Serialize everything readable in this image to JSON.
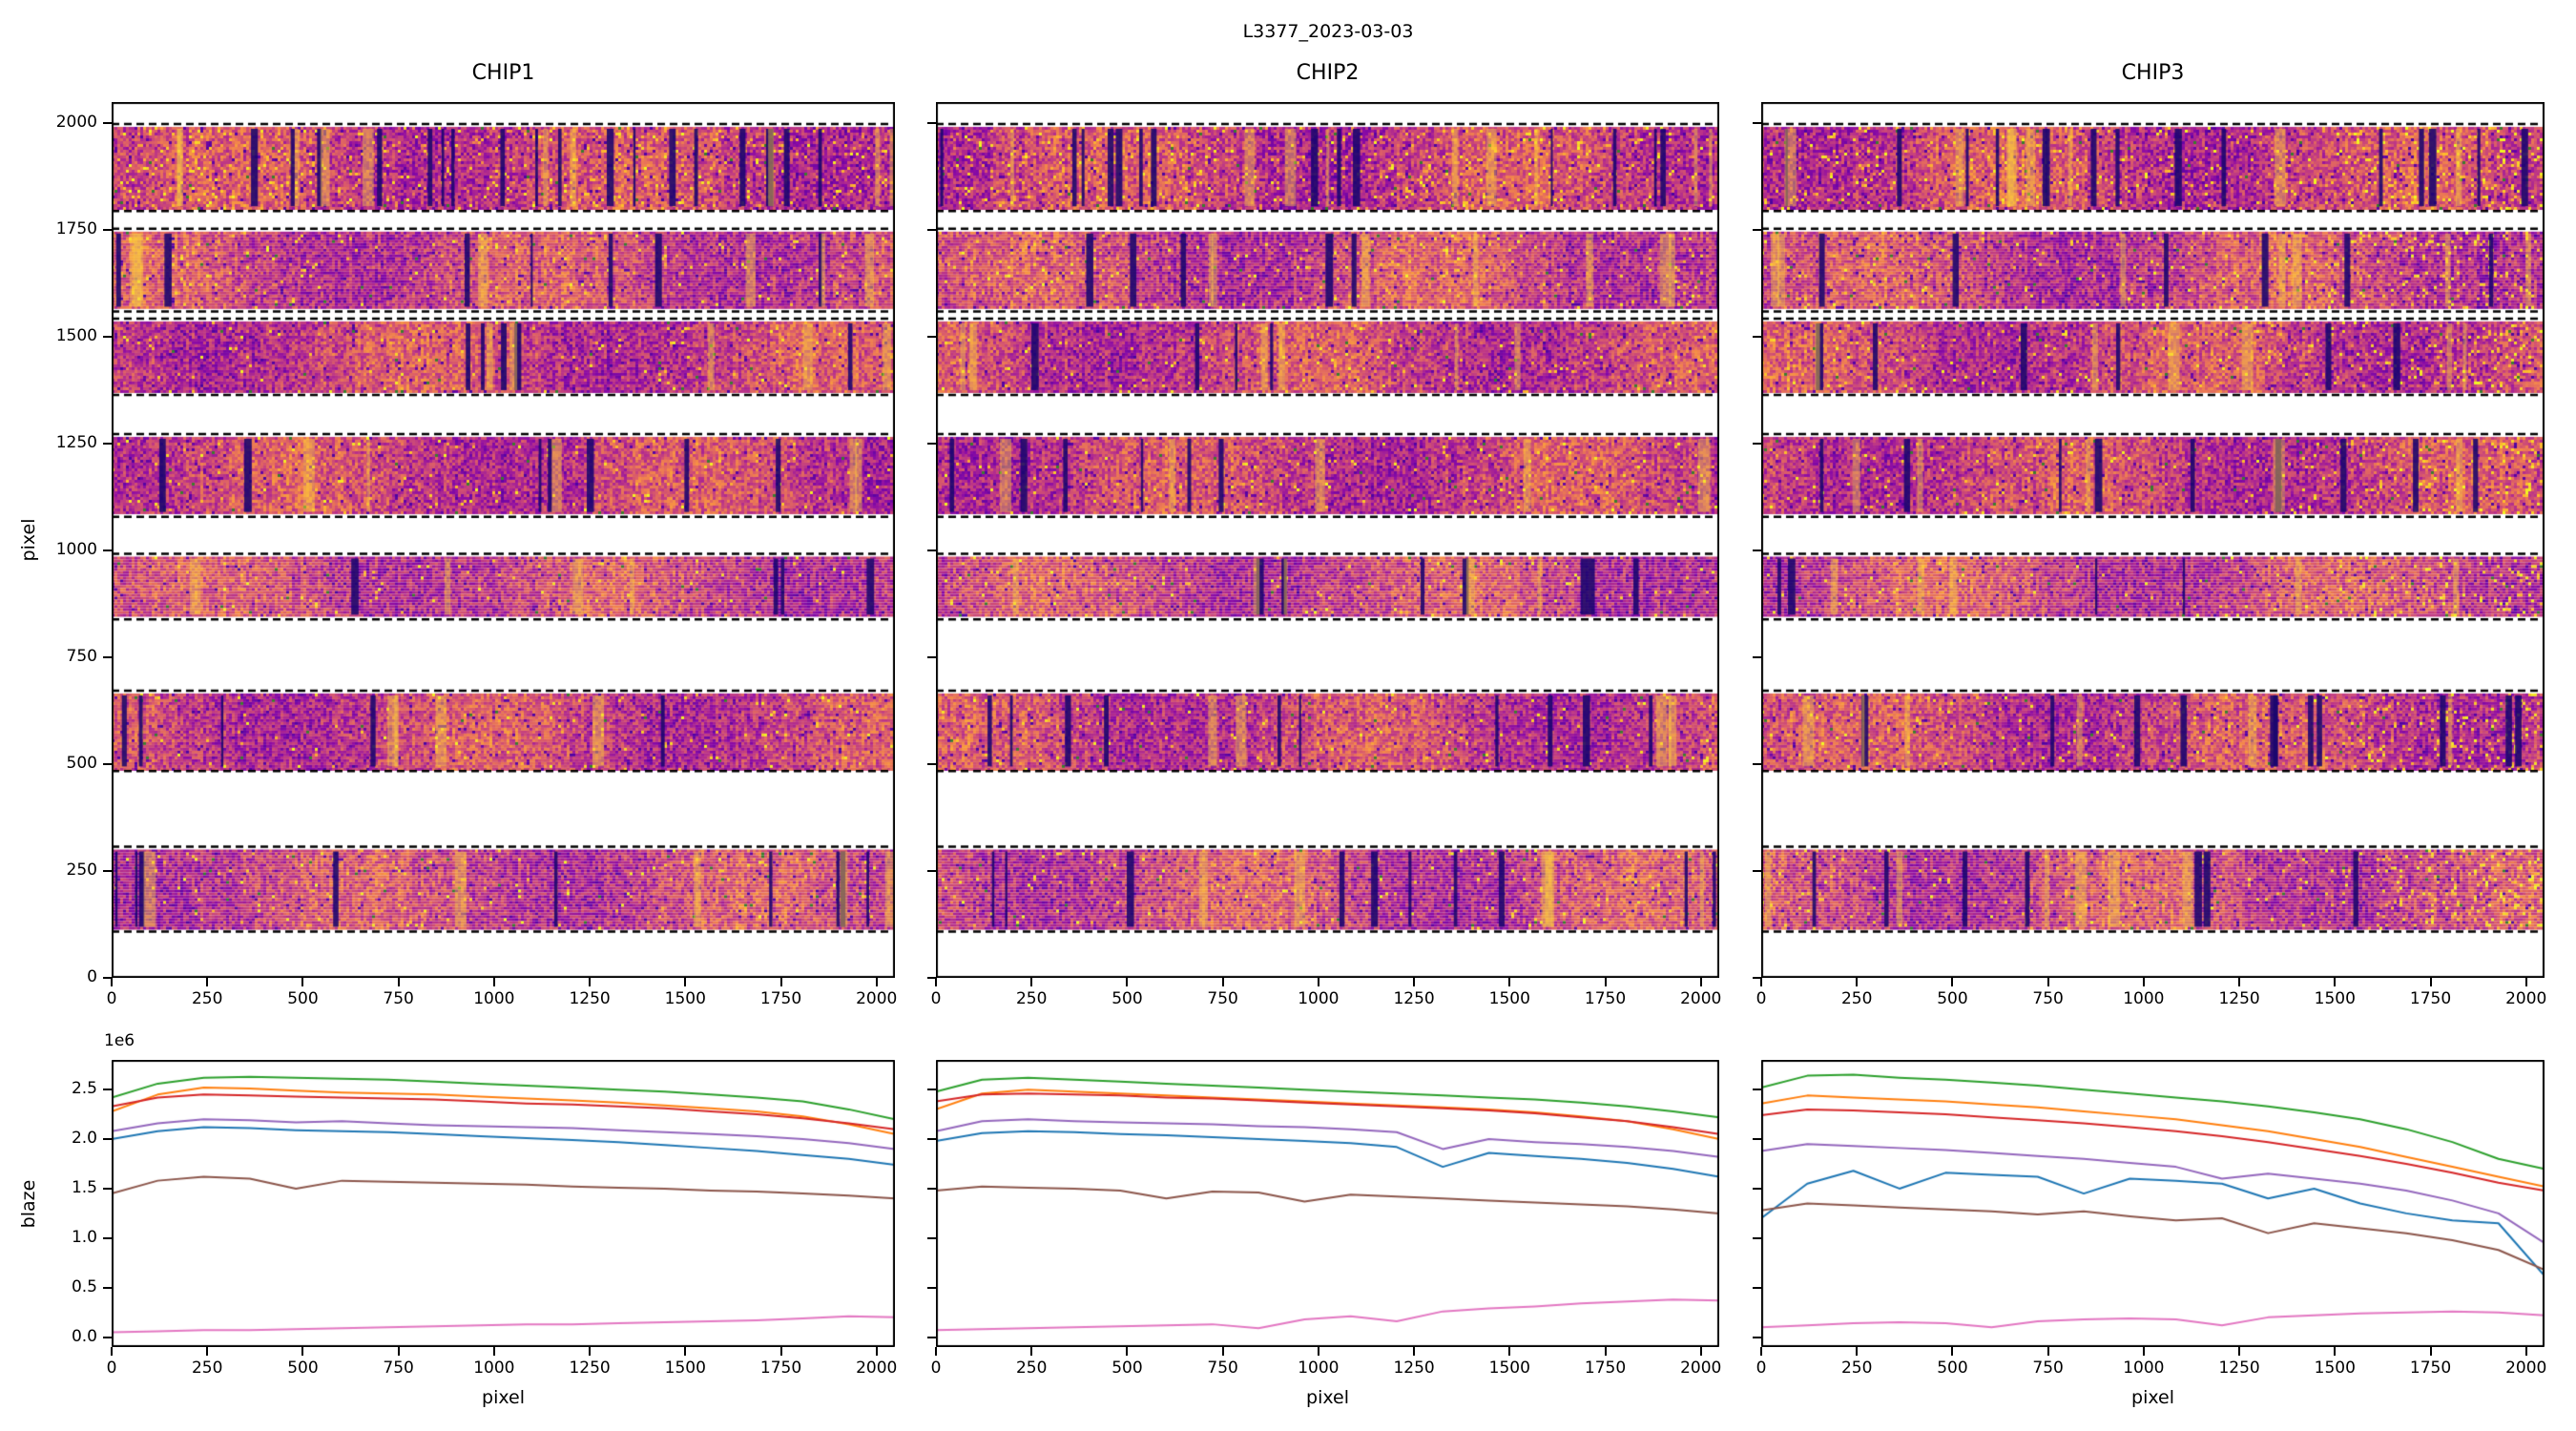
{
  "figure": {
    "title": "L3377_2023-03-03",
    "background": "#ffffff"
  },
  "axes": {
    "top": {
      "ylabel": "pixel",
      "xlim": [
        0,
        2048
      ],
      "ylim": [
        0,
        2048
      ],
      "xticks": {
        "values": [
          0,
          250,
          500,
          750,
          1000,
          1250,
          1500,
          1750,
          2000
        ],
        "labels": [
          "0",
          "250",
          "500",
          "750",
          "1000",
          "1250",
          "1500",
          "1750",
          "2000"
        ]
      },
      "yticks": {
        "values": [
          0,
          250,
          500,
          750,
          1000,
          1250,
          1500,
          1750,
          2000
        ],
        "labels": [
          "0",
          "250",
          "500",
          "750",
          "1000",
          "1250",
          "1500",
          "1750",
          "2000"
        ]
      }
    },
    "bottom": {
      "ylabel": "blaze",
      "xlabel": "pixel",
      "offset_text": "1e6",
      "xlim": [
        0,
        2048
      ],
      "ylim": [
        -0.1,
        2.8
      ],
      "xticks": {
        "values": [
          0,
          250,
          500,
          750,
          1000,
          1250,
          1500,
          1750,
          2000
        ],
        "labels": [
          "0",
          "250",
          "500",
          "750",
          "1000",
          "1250",
          "1500",
          "1750",
          "2000"
        ]
      },
      "yticks": {
        "values": [
          0,
          0.5,
          1.0,
          1.5,
          2.0,
          2.5
        ],
        "labels": [
          "0.0",
          "0.5",
          "1.0",
          "1.5",
          "2.0",
          "2.5"
        ]
      }
    }
  },
  "chart_data": [
    {
      "type": "heatmap",
      "panel": "top",
      "title": "CHIP1",
      "xlim": [
        0,
        2048
      ],
      "ylim": [
        0,
        2048
      ],
      "colormap": "plasma",
      "orders": [
        {
          "y0": 1800,
          "y1": 1990,
          "intensity": 1.0,
          "hot_edge": false
        },
        {
          "y0": 1565,
          "y1": 1745,
          "intensity": 0.65,
          "hot_edge": false
        },
        {
          "y0": 1370,
          "y1": 1535,
          "intensity": 0.5,
          "hot_edge": false
        },
        {
          "y0": 1085,
          "y1": 1265,
          "intensity": 0.5,
          "hot_edge": false
        },
        {
          "y0": 845,
          "y1": 985,
          "intensity": 0.4,
          "hot_edge": false
        },
        {
          "y0": 490,
          "y1": 665,
          "intensity": 0.45,
          "hot_edge": false
        },
        {
          "y0": 115,
          "y1": 300,
          "intensity": 0.5,
          "hot_edge": false
        }
      ]
    },
    {
      "type": "heatmap",
      "panel": "top",
      "title": "CHIP2",
      "xlim": [
        0,
        2048
      ],
      "ylim": [
        0,
        2048
      ],
      "colormap": "plasma",
      "orders": [
        {
          "y0": 1800,
          "y1": 1990,
          "intensity": 0.95,
          "hot_edge": false
        },
        {
          "y0": 1565,
          "y1": 1745,
          "intensity": 0.7,
          "hot_edge": false
        },
        {
          "y0": 1370,
          "y1": 1535,
          "intensity": 0.6,
          "hot_edge": false
        },
        {
          "y0": 1085,
          "y1": 1265,
          "intensity": 0.5,
          "hot_edge": false
        },
        {
          "y0": 845,
          "y1": 985,
          "intensity": 0.5,
          "hot_edge": false
        },
        {
          "y0": 490,
          "y1": 665,
          "intensity": 0.5,
          "hot_edge": false
        },
        {
          "y0": 115,
          "y1": 300,
          "intensity": 0.55,
          "hot_edge": false
        }
      ]
    },
    {
      "type": "heatmap",
      "panel": "top",
      "title": "CHIP3",
      "xlim": [
        0,
        2048
      ],
      "ylim": [
        0,
        2048
      ],
      "colormap": "plasma",
      "orders": [
        {
          "y0": 1800,
          "y1": 1990,
          "intensity": 0.85,
          "hot_edge": true
        },
        {
          "y0": 1565,
          "y1": 1745,
          "intensity": 0.7,
          "hot_edge": true
        },
        {
          "y0": 1370,
          "y1": 1535,
          "intensity": 0.65,
          "hot_edge": true
        },
        {
          "y0": 1085,
          "y1": 1265,
          "intensity": 0.5,
          "hot_edge": true
        },
        {
          "y0": 845,
          "y1": 985,
          "intensity": 0.5,
          "hot_edge": true
        },
        {
          "y0": 490,
          "y1": 665,
          "intensity": 0.6,
          "hot_edge": true
        },
        {
          "y0": 115,
          "y1": 300,
          "intensity": 0.6,
          "hot_edge": true
        }
      ]
    },
    {
      "type": "line",
      "panel": "bottom",
      "chip": "CHIP1",
      "x_range": [
        0,
        2048
      ],
      "y_unit": "1e6",
      "series": [
        {
          "color": "#2ca02c",
          "y": [
            2.42,
            2.56,
            2.62,
            2.63,
            2.62,
            2.61,
            2.6,
            2.58,
            2.56,
            2.54,
            2.52,
            2.5,
            2.48,
            2.45,
            2.42,
            2.38,
            2.3,
            2.2
          ]
        },
        {
          "color": "#ff7f0e",
          "y": [
            2.28,
            2.45,
            2.52,
            2.51,
            2.49,
            2.47,
            2.46,
            2.45,
            2.43,
            2.41,
            2.39,
            2.37,
            2.34,
            2.31,
            2.28,
            2.23,
            2.15,
            2.05
          ]
        },
        {
          "color": "#d62728",
          "y": [
            2.33,
            2.42,
            2.45,
            2.44,
            2.43,
            2.42,
            2.41,
            2.4,
            2.38,
            2.36,
            2.35,
            2.33,
            2.31,
            2.28,
            2.25,
            2.21,
            2.16,
            2.1
          ]
        },
        {
          "color": "#9467bd",
          "y": [
            2.08,
            2.16,
            2.2,
            2.19,
            2.17,
            2.18,
            2.16,
            2.14,
            2.13,
            2.12,
            2.11,
            2.09,
            2.07,
            2.05,
            2.03,
            2.0,
            1.96,
            1.9
          ]
        },
        {
          "color": "#1f77b4",
          "y": [
            2.0,
            2.08,
            2.12,
            2.11,
            2.09,
            2.08,
            2.07,
            2.05,
            2.03,
            2.01,
            1.99,
            1.97,
            1.94,
            1.91,
            1.88,
            1.84,
            1.8,
            1.74
          ]
        },
        {
          "color": "#8c564b",
          "y": [
            1.45,
            1.58,
            1.62,
            1.6,
            1.5,
            1.58,
            1.57,
            1.56,
            1.55,
            1.54,
            1.52,
            1.51,
            1.5,
            1.48,
            1.47,
            1.45,
            1.43,
            1.4
          ]
        },
        {
          "color": "#e377c2",
          "y": [
            0.05,
            0.06,
            0.07,
            0.07,
            0.08,
            0.09,
            0.1,
            0.11,
            0.12,
            0.13,
            0.13,
            0.14,
            0.15,
            0.16,
            0.17,
            0.19,
            0.21,
            0.2
          ]
        }
      ]
    },
    {
      "type": "line",
      "panel": "bottom",
      "chip": "CHIP2",
      "x_range": [
        0,
        2048
      ],
      "y_unit": "1e6",
      "series": [
        {
          "color": "#2ca02c",
          "y": [
            2.48,
            2.6,
            2.62,
            2.6,
            2.58,
            2.56,
            2.54,
            2.52,
            2.5,
            2.48,
            2.46,
            2.44,
            2.42,
            2.4,
            2.37,
            2.33,
            2.28,
            2.22
          ]
        },
        {
          "color": "#ff7f0e",
          "y": [
            2.3,
            2.46,
            2.5,
            2.48,
            2.46,
            2.44,
            2.42,
            2.4,
            2.38,
            2.36,
            2.34,
            2.32,
            2.3,
            2.27,
            2.23,
            2.18,
            2.1,
            2.0
          ]
        },
        {
          "color": "#d62728",
          "y": [
            2.38,
            2.45,
            2.46,
            2.45,
            2.44,
            2.42,
            2.41,
            2.39,
            2.37,
            2.35,
            2.33,
            2.31,
            2.29,
            2.26,
            2.22,
            2.18,
            2.12,
            2.05
          ]
        },
        {
          "color": "#9467bd",
          "y": [
            2.08,
            2.18,
            2.2,
            2.18,
            2.17,
            2.16,
            2.15,
            2.13,
            2.12,
            2.1,
            2.07,
            1.9,
            2.0,
            1.97,
            1.95,
            1.92,
            1.88,
            1.82
          ]
        },
        {
          "color": "#1f77b4",
          "y": [
            1.98,
            2.06,
            2.08,
            2.07,
            2.05,
            2.04,
            2.02,
            2.0,
            1.98,
            1.96,
            1.92,
            1.72,
            1.86,
            1.83,
            1.8,
            1.76,
            1.7,
            1.62
          ]
        },
        {
          "color": "#8c564b",
          "y": [
            1.48,
            1.52,
            1.51,
            1.5,
            1.48,
            1.4,
            1.47,
            1.46,
            1.37,
            1.44,
            1.42,
            1.4,
            1.38,
            1.36,
            1.34,
            1.32,
            1.29,
            1.25
          ]
        },
        {
          "color": "#e377c2",
          "y": [
            0.07,
            0.08,
            0.09,
            0.1,
            0.11,
            0.12,
            0.13,
            0.09,
            0.18,
            0.21,
            0.16,
            0.26,
            0.29,
            0.31,
            0.34,
            0.36,
            0.38,
            0.37
          ]
        }
      ]
    },
    {
      "type": "line",
      "panel": "bottom",
      "chip": "CHIP3",
      "x_range": [
        0,
        2048
      ],
      "y_unit": "1e6",
      "series": [
        {
          "color": "#2ca02c",
          "y": [
            2.52,
            2.64,
            2.65,
            2.62,
            2.6,
            2.57,
            2.54,
            2.5,
            2.46,
            2.42,
            2.38,
            2.33,
            2.27,
            2.2,
            2.1,
            1.97,
            1.8,
            1.7
          ]
        },
        {
          "color": "#ff7f0e",
          "y": [
            2.36,
            2.44,
            2.42,
            2.4,
            2.38,
            2.35,
            2.32,
            2.28,
            2.24,
            2.2,
            2.14,
            2.08,
            2.0,
            1.92,
            1.82,
            1.72,
            1.62,
            1.52
          ]
        },
        {
          "color": "#d62728",
          "y": [
            2.24,
            2.3,
            2.29,
            2.27,
            2.25,
            2.22,
            2.19,
            2.16,
            2.12,
            2.08,
            2.03,
            1.97,
            1.9,
            1.83,
            1.75,
            1.66,
            1.56,
            1.48
          ]
        },
        {
          "color": "#9467bd",
          "y": [
            1.88,
            1.95,
            1.93,
            1.91,
            1.89,
            1.86,
            1.83,
            1.8,
            1.76,
            1.72,
            1.6,
            1.65,
            1.6,
            1.55,
            1.48,
            1.38,
            1.25,
            0.95
          ]
        },
        {
          "color": "#1f77b4",
          "y": [
            1.2,
            1.55,
            1.68,
            1.5,
            1.66,
            1.64,
            1.62,
            1.45,
            1.6,
            1.58,
            1.55,
            1.4,
            1.5,
            1.35,
            1.25,
            1.18,
            1.15,
            0.62
          ]
        },
        {
          "color": "#8c564b",
          "y": [
            1.28,
            1.35,
            1.33,
            1.31,
            1.29,
            1.27,
            1.24,
            1.27,
            1.22,
            1.18,
            1.2,
            1.05,
            1.15,
            1.1,
            1.05,
            0.98,
            0.88,
            0.68
          ]
        },
        {
          "color": "#e377c2",
          "y": [
            0.1,
            0.12,
            0.14,
            0.15,
            0.14,
            0.1,
            0.16,
            0.18,
            0.19,
            0.18,
            0.12,
            0.2,
            0.22,
            0.24,
            0.25,
            0.26,
            0.25,
            0.22
          ]
        }
      ]
    }
  ]
}
